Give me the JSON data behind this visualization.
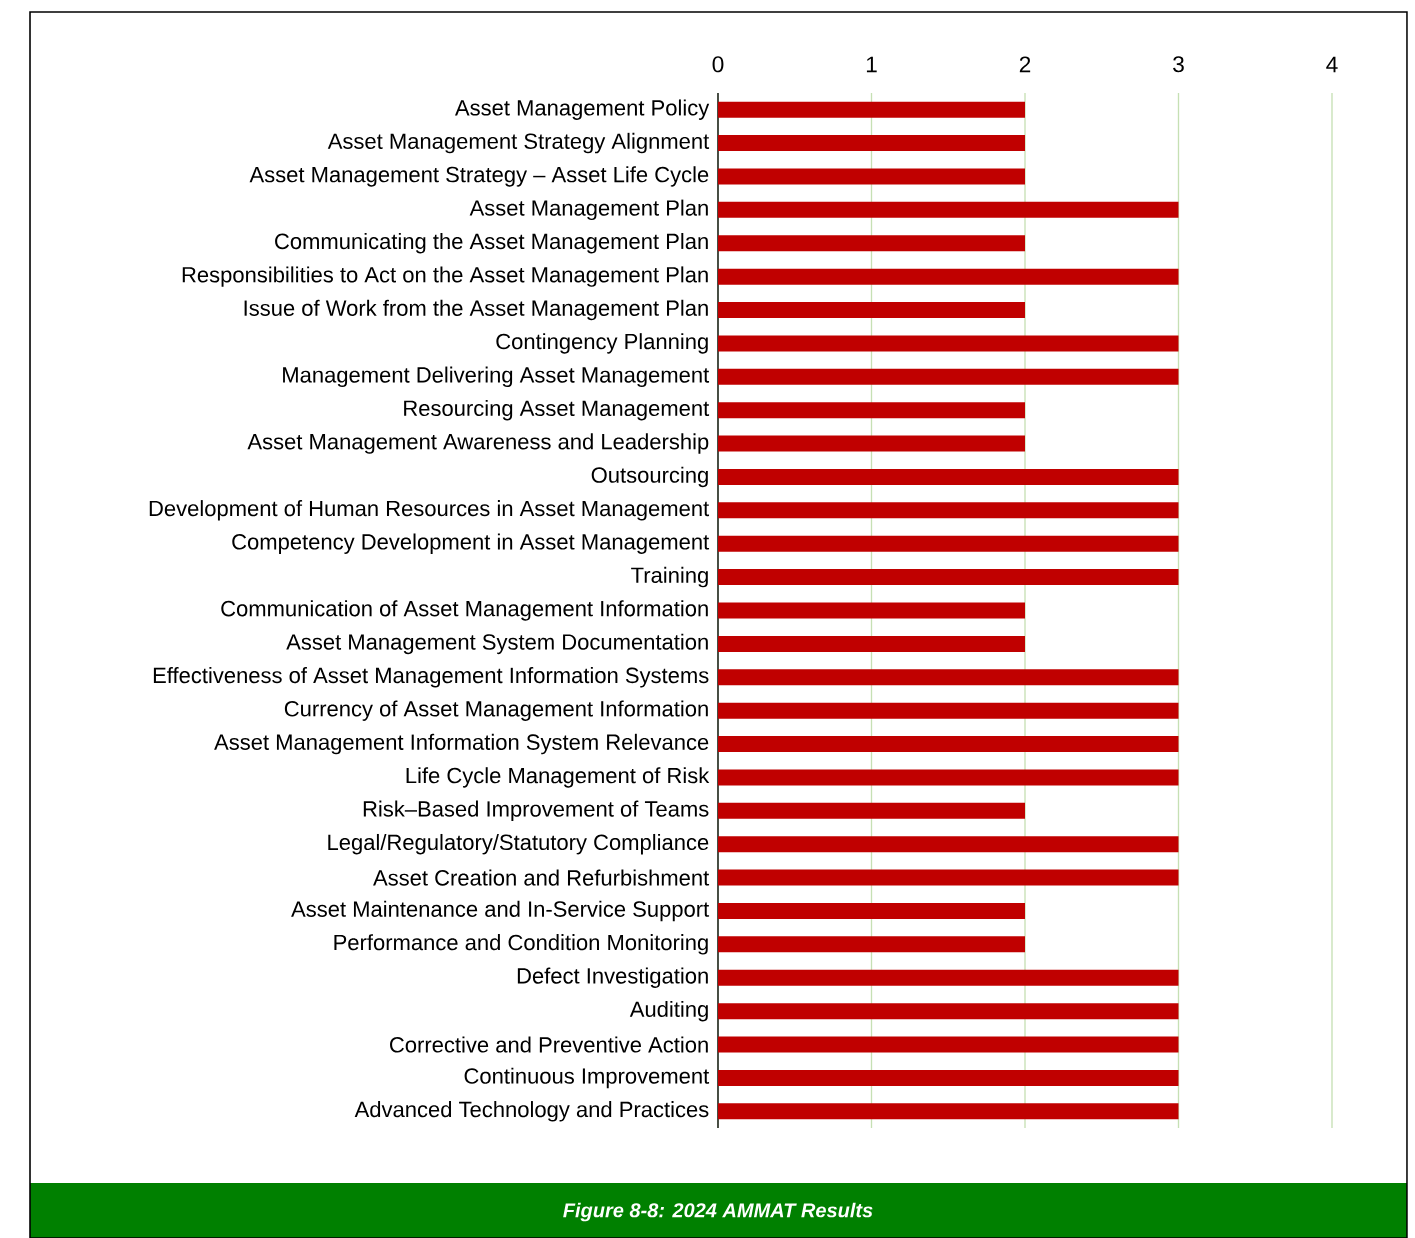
{
  "chart_data": {
    "type": "bar",
    "orientation": "horizontal",
    "categories": [
      "Asset Management Policy",
      "Asset Management Strategy Alignment",
      "Asset Management Strategy – Asset Life Cycle",
      "Asset Management Plan",
      "Communicating the Asset Management Plan",
      "Responsibilities to Act on the Asset Management Plan",
      "Issue of Work from the Asset Management Plan",
      "Contingency Planning",
      "Management Delivering Asset Management",
      "Resourcing Asset Management",
      "Asset Management Awareness and Leadership",
      "Outsourcing",
      "Development of Human Resources in Asset Management",
      "Competency Development in Asset Management",
      "Training",
      "Communication of Asset Management Information",
      "Asset Management System Documentation",
      "Effectiveness of Asset Management Information Systems",
      "Currency of Asset Management Information",
      "Asset Management Information System Relevance",
      "Life Cycle Management of Risk",
      "Risk–Based Improvement of Teams",
      "Legal/Regulatory/Statutory Compliance",
      "Asset Creation and Refurbishment",
      "Asset Maintenance and In-Service Support",
      "Performance and Condition Monitoring",
      "Defect Investigation",
      "Auditing",
      "Corrective and Preventive Action",
      "Continuous Improvement",
      "Advanced Technology and Practices"
    ],
    "values": [
      2,
      2,
      2,
      3,
      2,
      3,
      2,
      3,
      3,
      2,
      2,
      3,
      3,
      3,
      3,
      2,
      2,
      3,
      3,
      3,
      3,
      2,
      3,
      3,
      2,
      2,
      3,
      3,
      3,
      3,
      3
    ],
    "color": "#c00000",
    "xlim": [
      0,
      4
    ],
    "xticks": [
      0,
      1,
      2,
      3,
      4
    ],
    "grid": "x",
    "annotations": [
      "Figure 8-8: 2024 AMMAT Results"
    ]
  }
}
